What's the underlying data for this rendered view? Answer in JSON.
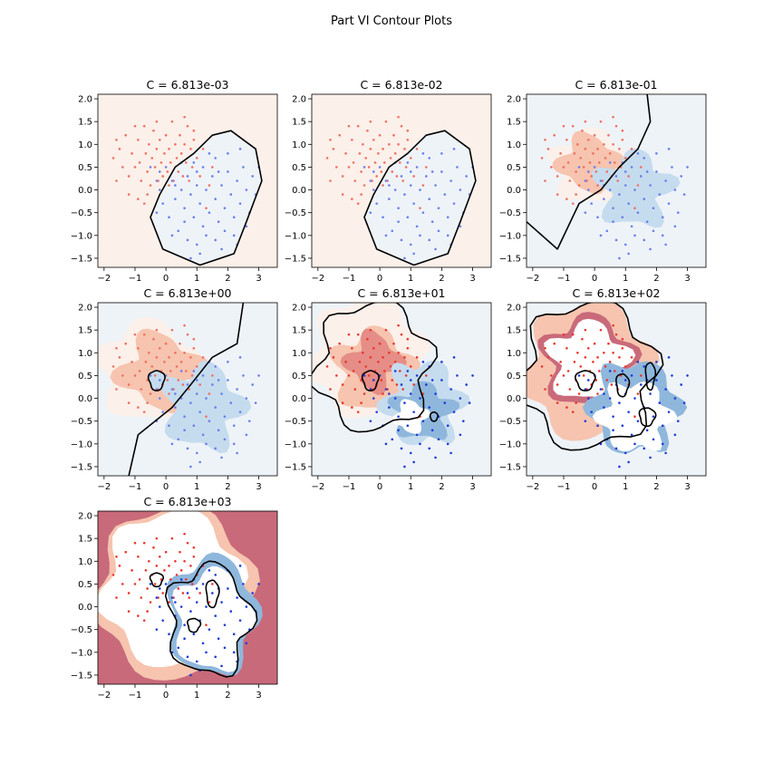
{
  "figure": {
    "suptitle": "Part VI Contour Plots"
  },
  "chart_data": [
    {
      "type": "contour",
      "title": "C = 6.813e-03",
      "xlim": [
        -2.2,
        3.6
      ],
      "ylim": [
        -1.7,
        2.1
      ],
      "xticks": [
        -2,
        -1,
        0,
        1,
        2,
        3
      ],
      "yticks": [
        -1.5,
        -1.0,
        -0.5,
        0.0,
        0.5,
        1.0,
        1.5,
        2.0
      ],
      "boundary_style": "smooth",
      "grid": false
    },
    {
      "type": "contour",
      "title": "C = 6.813e-02",
      "xlim": [
        -2.2,
        3.6
      ],
      "ylim": [
        -1.7,
        2.1
      ],
      "xticks": [
        -2,
        -1,
        0,
        1,
        2,
        3
      ],
      "yticks": [
        -1.5,
        -1.0,
        -0.5,
        0.0,
        0.5,
        1.0,
        1.5,
        2.0
      ],
      "boundary_style": "smooth",
      "grid": false
    },
    {
      "type": "contour",
      "title": "C = 6.813e-01",
      "xlim": [
        -2.2,
        3.6
      ],
      "ylim": [
        -1.7,
        2.1
      ],
      "xticks": [
        -2,
        -1,
        0,
        1,
        2,
        3
      ],
      "yticks": [
        -1.5,
        -1.0,
        -0.5,
        0.0,
        0.5,
        1.0,
        1.5,
        2.0
      ],
      "boundary_style": "wavy",
      "grid": false
    },
    {
      "type": "contour",
      "title": "C = 6.813e+00",
      "xlim": [
        -2.2,
        3.6
      ],
      "ylim": [
        -1.7,
        2.1
      ],
      "xticks": [
        -2,
        -1,
        0,
        1,
        2,
        3
      ],
      "yticks": [
        -1.5,
        -1.0,
        -0.5,
        0.0,
        0.5,
        1.0,
        1.5,
        2.0
      ],
      "boundary_style": "wavy",
      "grid": false
    },
    {
      "type": "contour",
      "title": "C = 6.813e+01",
      "xlim": [
        -2.2,
        3.6
      ],
      "ylim": [
        -1.7,
        2.1
      ],
      "xticks": [
        -2,
        -1,
        0,
        1,
        2,
        3
      ],
      "yticks": [
        -1.5,
        -1.0,
        -0.5,
        0.0,
        0.5,
        1.0,
        1.5,
        2.0
      ],
      "boundary_style": "complex",
      "grid": false
    },
    {
      "type": "contour",
      "title": "C = 6.813e+02",
      "xlim": [
        -2.2,
        3.6
      ],
      "ylim": [
        -1.7,
        2.1
      ],
      "xticks": [
        -2,
        -1,
        0,
        1,
        2,
        3
      ],
      "yticks": [
        -1.5,
        -1.0,
        -0.5,
        0.0,
        0.5,
        1.0,
        1.5,
        2.0
      ],
      "boundary_style": "complex",
      "grid": false
    },
    {
      "type": "contour",
      "title": "C = 6.813e+03",
      "xlim": [
        -2.2,
        3.6
      ],
      "ylim": [
        -1.7,
        2.1
      ],
      "xticks": [
        -2,
        -1,
        0,
        1,
        2,
        3
      ],
      "yticks": [
        -1.5,
        -1.0,
        -0.5,
        0.0,
        0.5,
        1.0,
        1.5,
        2.0
      ],
      "boundary_style": "complex",
      "grid": false
    }
  ],
  "points": {
    "red_class": [
      [
        -1.7,
        0.7
      ],
      [
        -1.6,
        0.2
      ],
      [
        -1.5,
        0.9
      ],
      [
        -1.4,
        0.5
      ],
      [
        -1.3,
        1.2
      ],
      [
        -1.2,
        0.3
      ],
      [
        -1.1,
        0.8
      ],
      [
        -1.0,
        0.5
      ],
      [
        -0.9,
        1.1
      ],
      [
        -0.85,
        0.6
      ],
      [
        -0.8,
        0.2
      ],
      [
        -0.7,
        1.4
      ],
      [
        -0.65,
        0.8
      ],
      [
        -0.6,
        0.4
      ],
      [
        -0.55,
        1.0
      ],
      [
        -0.5,
        0.1
      ],
      [
        -0.45,
        0.7
      ],
      [
        -0.4,
        1.3
      ],
      [
        -0.35,
        0.5
      ],
      [
        -0.3,
        0.9
      ],
      [
        -0.25,
        0.2
      ],
      [
        -0.2,
        1.1
      ],
      [
        -0.15,
        0.6
      ],
      [
        -0.1,
        0.3
      ],
      [
        -0.05,
        0.8
      ],
      [
        0.0,
        1.2
      ],
      [
        0.05,
        0.4
      ],
      [
        0.1,
        0.9
      ],
      [
        0.15,
        0.6
      ],
      [
        0.2,
        1.5
      ],
      [
        0.25,
        0.2
      ],
      [
        0.3,
        1.0
      ],
      [
        0.35,
        0.7
      ],
      [
        0.4,
        0.4
      ],
      [
        0.45,
        1.2
      ],
      [
        0.5,
        0.8
      ],
      [
        0.55,
        0.3
      ],
      [
        0.6,
        1.0
      ],
      [
        0.65,
        0.6
      ],
      [
        0.7,
        1.4
      ],
      [
        0.75,
        0.2
      ],
      [
        0.8,
        0.9
      ],
      [
        0.85,
        0.5
      ],
      [
        0.9,
        1.1
      ],
      [
        1.0,
        0.7
      ],
      [
        1.1,
        0.3
      ],
      [
        1.2,
        0.9
      ],
      [
        -1.2,
        -0.1
      ],
      [
        -0.9,
        -0.2
      ],
      [
        -0.6,
        -0.1
      ],
      [
        0.6,
        1.6
      ],
      [
        0.9,
        1.3
      ],
      [
        -0.3,
        1.5
      ],
      [
        1.3,
        -0.4
      ],
      [
        1.4,
        0.1
      ],
      [
        -1.6,
        1.1
      ],
      [
        -1.0,
        1.4
      ],
      [
        0.1,
        0.1
      ],
      [
        -0.7,
        -0.3
      ],
      [
        1.5,
        0.5
      ]
    ],
    "blue_class": [
      [
        -0.5,
        0.5
      ],
      [
        -0.3,
        0.2
      ],
      [
        -0.2,
        0.4
      ],
      [
        0.0,
        0.5
      ],
      [
        0.2,
        0.2
      ],
      [
        0.3,
        -0.2
      ],
      [
        0.5,
        0.0
      ],
      [
        0.6,
        -0.4
      ],
      [
        0.7,
        0.3
      ],
      [
        0.8,
        -0.1
      ],
      [
        0.9,
        -0.6
      ],
      [
        1.0,
        0.1
      ],
      [
        1.1,
        -0.3
      ],
      [
        1.2,
        -0.8
      ],
      [
        1.3,
        0.0
      ],
      [
        1.4,
        -0.5
      ],
      [
        1.5,
        0.3
      ],
      [
        1.6,
        -0.2
      ],
      [
        1.7,
        -0.7
      ],
      [
        1.8,
        0.1
      ],
      [
        1.9,
        -0.4
      ],
      [
        2.0,
        0.4
      ],
      [
        2.1,
        -0.1
      ],
      [
        2.2,
        -0.6
      ],
      [
        2.3,
        0.2
      ],
      [
        2.4,
        -0.3
      ],
      [
        2.5,
        0.5
      ],
      [
        2.6,
        0.0
      ],
      [
        2.7,
        -0.5
      ],
      [
        2.8,
        0.3
      ],
      [
        0.1,
        -0.6
      ],
      [
        0.4,
        -0.9
      ],
      [
        0.7,
        -1.1
      ],
      [
        1.0,
        -1.2
      ],
      [
        1.3,
        -1.0
      ],
      [
        1.6,
        -1.1
      ],
      [
        1.9,
        -0.9
      ],
      [
        2.2,
        -1.0
      ],
      [
        -0.1,
        -0.3
      ],
      [
        0.9,
        0.6
      ],
      [
        1.2,
        0.5
      ],
      [
        1.6,
        0.7
      ],
      [
        2.0,
        0.8
      ],
      [
        2.4,
        0.9
      ],
      [
        1.8,
        -1.3
      ],
      [
        0.5,
        0.6
      ],
      [
        3.0,
        0.5
      ],
      [
        -0.3,
        -0.5
      ],
      [
        0.2,
        -1.0
      ],
      [
        1.1,
        -1.4
      ],
      [
        2.6,
        -0.8
      ],
      [
        1.7,
        0.4
      ],
      [
        0.6,
        -0.7
      ],
      [
        1.4,
        0.8
      ],
      [
        0.3,
        0.1
      ],
      [
        -0.2,
        0.0
      ],
      [
        2.9,
        -0.1
      ],
      [
        2.3,
        -1.2
      ],
      [
        1.0,
        0.4
      ],
      [
        0.8,
        -1.5
      ]
    ]
  },
  "colors": {
    "red_point": "#e8382e",
    "blue_point": "#1f3bd6",
    "red_bg_light": "#fbf0ea",
    "blue_bg_light": "#eef3f8",
    "red_fill": "#f6c4af",
    "red_mid": "#e58d86",
    "red_dark": "#c96a7a",
    "blue_fill": "#c5dcee",
    "blue_mid": "#8fb7dc",
    "blue_dark": "#5e89bd",
    "boundary": "#000000"
  }
}
